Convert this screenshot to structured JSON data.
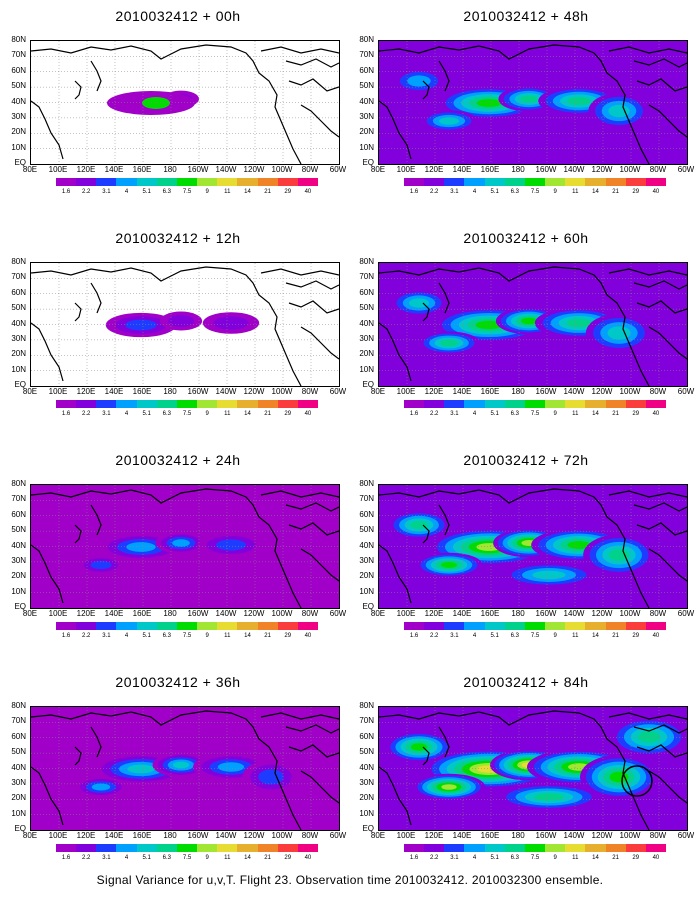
{
  "caption": "Signal Variance for u,v,T. Flight 23. Observation time 2010032412. 2010032300 ensemble.",
  "panels": [
    {
      "title": "2010032412 + 00h",
      "intensity": 0.0,
      "extra": false
    },
    {
      "title": "2010032412 + 12h",
      "intensity": 0.15,
      "extra": false
    },
    {
      "title": "2010032412 + 24h",
      "intensity": 0.35,
      "extra": false
    },
    {
      "title": "2010032412 + 36h",
      "intensity": 0.5,
      "extra": false
    },
    {
      "title": "2010032412 + 48h",
      "intensity": 0.6,
      "extra": false
    },
    {
      "title": "2010032412 + 60h",
      "intensity": 0.72,
      "extra": false
    },
    {
      "title": "2010032412 + 72h",
      "intensity": 0.85,
      "extra": false
    },
    {
      "title": "2010032412 + 84h",
      "intensity": 1.0,
      "extra": true
    }
  ],
  "lat_labels": [
    "80N",
    "70N",
    "60N",
    "50N",
    "40N",
    "30N",
    "20N",
    "10N",
    "EQ"
  ],
  "lon_labels": [
    "80E",
    "100E",
    "120E",
    "140E",
    "160E",
    "180",
    "160W",
    "140W",
    "120W",
    "100W",
    "80W",
    "60W"
  ],
  "colorbar_labels": [
    "1.6",
    "2.2",
    "3.1",
    "4",
    "5.1",
    "6.3",
    "7.5",
    "9",
    "11",
    "14",
    "21",
    "29",
    "40"
  ],
  "colorbar_colors": [
    "#a000c8",
    "#8200dc",
    "#1e3cff",
    "#00a0ff",
    "#00c8c8",
    "#00d28c",
    "#00dc00",
    "#a0e632",
    "#e6dc32",
    "#e6af2d",
    "#f08228",
    "#fa3c3c",
    "#f00082"
  ]
}
